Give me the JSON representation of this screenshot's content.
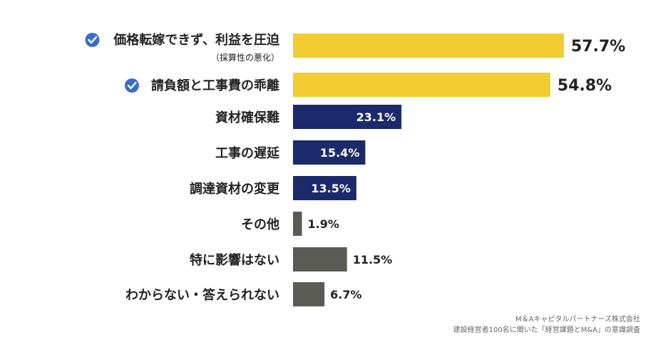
{
  "chart_data": {
    "type": "bar",
    "orientation": "horizontal",
    "categories": [
      "価格転嫁できず、利益を圧迫",
      "請負額と工事費の乖離",
      "資材確保難",
      "工事の遅延",
      "調達資材の変更",
      "その他",
      "特に影響はない",
      "わからない・答えられない"
    ],
    "subcategory_notes": [
      "（採算性の悪化）",
      "",
      "",
      "",
      "",
      "",
      "",
      ""
    ],
    "checked": [
      true,
      true,
      false,
      false,
      false,
      false,
      false,
      false
    ],
    "values": [
      57.7,
      54.8,
      23.1,
      15.4,
      13.5,
      1.9,
      11.5,
      6.7
    ],
    "value_labels": [
      "57.7%",
      "54.8%",
      "23.1%",
      "15.4%",
      "13.5%",
      "1.9%",
      "11.5%",
      "6.7%"
    ],
    "bar_colors": [
      "#F2CC30",
      "#F2CC30",
      "#1B2A6B",
      "#1B2A6B",
      "#1B2A6B",
      "#5B5B55",
      "#5B5B55",
      "#5B5B55"
    ],
    "check_icon": "check-circle-icon",
    "check_color": "#3A6FC4",
    "xlim": [
      0,
      60
    ],
    "grid": false,
    "title": "",
    "xlabel": "",
    "ylabel": ""
  },
  "source": {
    "line1": "M＆Aキャピタルパートナーズ株式会社",
    "line2": "建設経営者100名に聞いた「経営課題とM&A」の意識調査"
  }
}
